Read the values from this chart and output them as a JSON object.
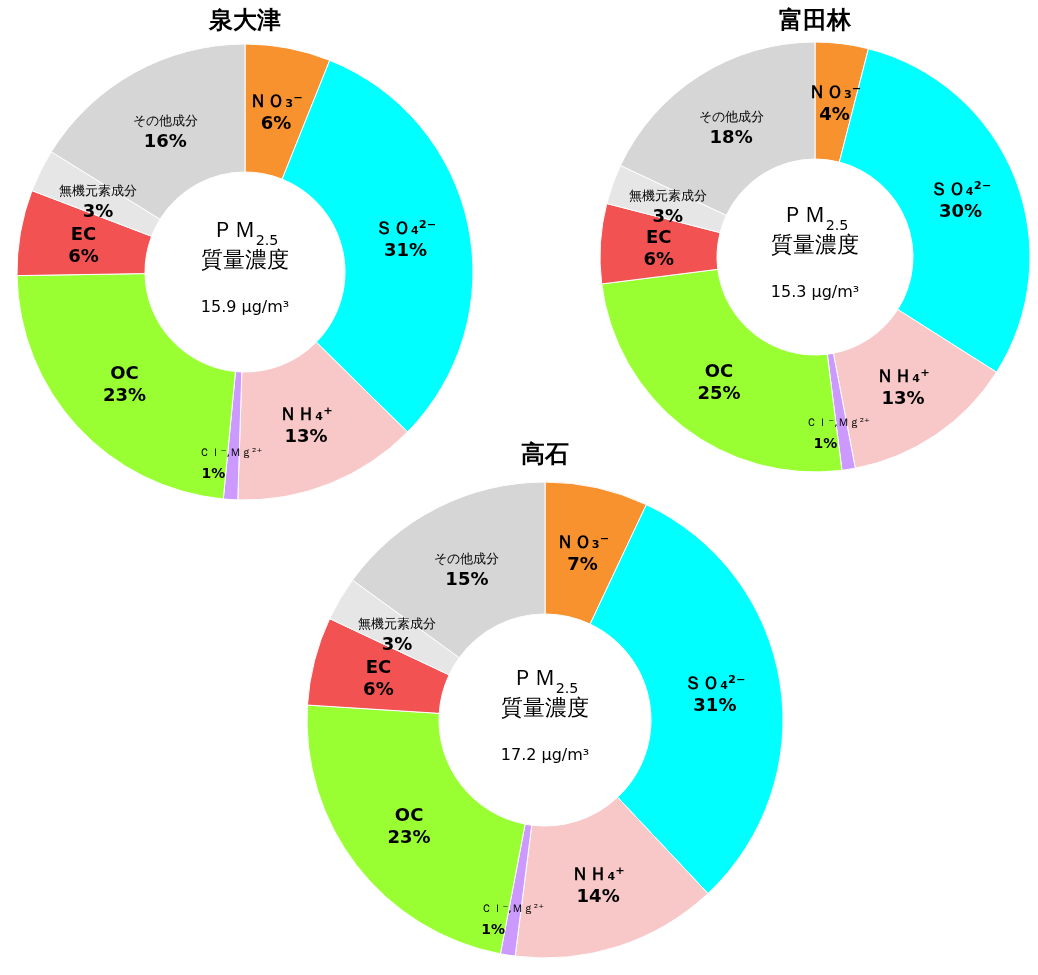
{
  "chart_data": [
    {
      "type": "donut",
      "title": "泉大津",
      "categories": [
        "ＮＯ₃⁻",
        "ＳＯ₄²⁻",
        "ＮＨ₄⁺",
        "Ｃｌ⁻,Ｍｇ²⁺",
        "OC",
        "EC",
        "無機元素成分",
        "その他成分"
      ],
      "values": [
        6,
        31,
        13,
        1,
        23,
        6,
        3,
        16
      ],
      "value_labels": [
        "6%",
        "31%",
        "13%",
        "1%",
        "23%",
        "6%",
        "3%",
        "16%"
      ],
      "colors": [
        "#f7922e",
        "#00ffff",
        "#f8c8c8",
        "#cc99ff",
        "#99ff33",
        "#f25252",
        "#e6e6e6",
        "#d6d6d6"
      ],
      "annotations": [
        "ＰＭ$_{2.5}$",
        "質量濃度",
        "15.9 μg/m³"
      ]
    },
    {
      "type": "donut",
      "title": "富田林",
      "categories": [
        "ＮＯ₃⁻",
        "ＳＯ₄²⁻",
        "ＮＨ₄⁺",
        "Ｃｌ⁻,Ｍｇ²⁺",
        "OC",
        "EC",
        "無機元素成分",
        "その他成分"
      ],
      "values": [
        4,
        30,
        13,
        1,
        25,
        6,
        3,
        18
      ],
      "value_labels": [
        "4%",
        "30%",
        "13%",
        "1%",
        "25%",
        "6%",
        "3%",
        "18%"
      ],
      "colors": [
        "#f7922e",
        "#00ffff",
        "#f8c8c8",
        "#cc99ff",
        "#99ff33",
        "#f25252",
        "#e6e6e6",
        "#d6d6d6"
      ],
      "annotations": [
        "ＰＭ$_{2.5}$",
        "質量濃度",
        "15.3 μg/m³"
      ]
    },
    {
      "type": "donut",
      "title": "高石",
      "categories": [
        "ＮＯ₃⁻",
        "ＳＯ₄²⁻",
        "ＮＨ₄⁺",
        "Ｃｌ⁻,Ｍｇ²⁺",
        "OC",
        "EC",
        "無機元素成分",
        "その他成分"
      ],
      "values": [
        7,
        31,
        14,
        1,
        23,
        6,
        3,
        15
      ],
      "value_labels": [
        "7%",
        "31%",
        "14%",
        "1%",
        "23%",
        "6%",
        "3%",
        "15%"
      ],
      "colors": [
        "#f7922e",
        "#00ffff",
        "#f8c8c8",
        "#cc99ff",
        "#99ff33",
        "#f25252",
        "#e6e6e6",
        "#d6d6d6"
      ],
      "annotations": [
        "ＰＭ$_{2.5}$",
        "質量濃度",
        "17.2 μg/m³"
      ]
    }
  ]
}
